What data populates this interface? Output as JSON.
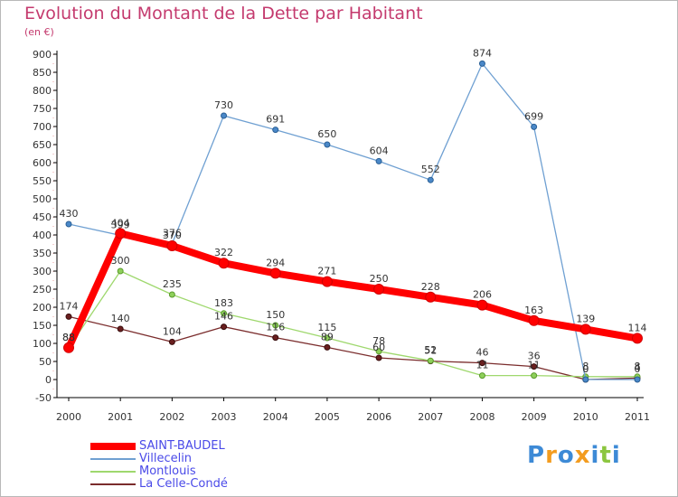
{
  "chart_data": {
    "type": "line",
    "title": "Evolution du Montant de la Dette par Habitant",
    "subtitle": "(en €)",
    "x": [
      "2000",
      "2001",
      "2002",
      "2003",
      "2004",
      "2005",
      "2006",
      "2007",
      "2008",
      "2009",
      "2010",
      "2011"
    ],
    "ylim": [
      -50,
      900
    ],
    "yticks": [
      -50,
      0,
      50,
      100,
      150,
      200,
      250,
      300,
      350,
      400,
      450,
      500,
      550,
      600,
      650,
      700,
      750,
      800,
      850,
      900
    ],
    "grid": false,
    "legend_position": "bottom-left",
    "series": [
      {
        "name": "SAINT-BAUDEL",
        "color": "#ff0000",
        "values": [
          88,
          404,
          370,
          322,
          294,
          271,
          250,
          228,
          206,
          163,
          139,
          114
        ]
      },
      {
        "name": "Villecelin",
        "color": "#6fa0d2",
        "values": [
          430,
          399,
          376,
          730,
          691,
          650,
          604,
          552,
          874,
          699,
          0,
          0
        ]
      },
      {
        "name": "Montlouis",
        "color": "#9fd86e",
        "values": [
          88,
          300,
          235,
          183,
          150,
          115,
          78,
          52,
          11,
          11,
          8,
          8
        ]
      },
      {
        "name": "La Celle-Condé",
        "color": "#7a2c2c",
        "values": [
          174,
          140,
          104,
          146,
          116,
          89,
          60,
          51,
          46,
          36,
          0,
          4
        ]
      }
    ]
  },
  "logo": {
    "letters": [
      "P",
      "r",
      "o",
      "x",
      "i",
      "t",
      "i"
    ],
    "colors": [
      "#3d8ad6",
      "#f39c1f",
      "#3d8ad6",
      "#f39c1f",
      "#3d8ad6",
      "#8cc63f",
      "#3d8ad6"
    ]
  }
}
